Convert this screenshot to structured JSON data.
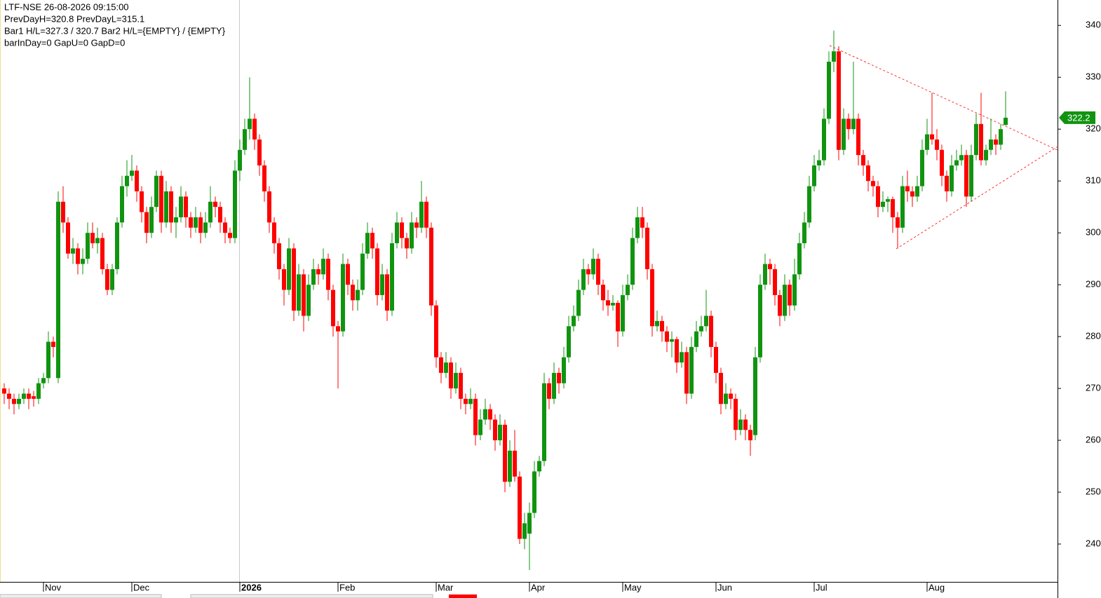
{
  "chart_data": {
    "type": "candlestick",
    "header_lines": [
      "LTF-NSE  26-08-2026 09:15:00",
      "PrevDayH=320.8  PrevDayL=315.1",
      "Bar1 H/L=327.3 / 320.7   Bar2 H/L={EMPTY} / {EMPTY}",
      "barInDay=0   GapU=0   GapD=0"
    ],
    "up_color": "#109410",
    "down_color": "#ff0000",
    "ylim": [
      232.7,
      344.9
    ],
    "yticks": [
      240,
      250,
      260,
      270,
      280,
      290,
      300,
      310,
      320,
      330,
      340
    ],
    "xticks": [
      {
        "value": 8,
        "label": "Nov"
      },
      {
        "value": 26,
        "label": "Dec"
      },
      {
        "value": 48,
        "label": "2026"
      },
      {
        "value": 68,
        "label": "Feb"
      },
      {
        "value": 88,
        "label": "Mar"
      },
      {
        "value": 107,
        "label": "Apr"
      },
      {
        "value": 126,
        "label": "May"
      },
      {
        "value": 145,
        "label": "Jun"
      },
      {
        "value": 165,
        "label": "Jul"
      },
      {
        "value": 188,
        "label": "Aug"
      }
    ],
    "ohlc": [
      [
        270,
        271,
        267,
        269
      ],
      [
        269,
        270,
        266,
        268
      ],
      [
        268,
        269,
        265,
        267
      ],
      [
        267,
        269,
        266,
        268
      ],
      [
        268,
        270,
        267,
        269
      ],
      [
        269,
        270,
        266,
        268
      ],
      [
        268.5,
        269.5,
        266.5,
        268
      ],
      [
        268,
        272,
        267,
        271
      ],
      [
        271,
        273,
        270,
        272
      ],
      [
        272,
        281,
        271,
        279
      ],
      [
        279,
        280,
        276,
        278
      ],
      [
        272,
        308,
        271,
        306
      ],
      [
        306,
        309,
        300,
        302
      ],
      [
        302,
        303,
        295,
        296
      ],
      [
        296,
        299,
        294,
        297
      ],
      [
        297,
        298,
        292,
        294
      ],
      [
        294,
        297,
        292,
        295
      ],
      [
        295,
        302,
        294,
        300
      ],
      [
        300,
        302,
        297,
        298
      ],
      [
        298,
        301,
        296,
        299
      ],
      [
        299,
        300,
        292,
        293
      ],
      [
        293,
        294,
        288,
        289
      ],
      [
        289,
        294,
        288,
        293
      ],
      [
        293,
        303,
        292,
        302
      ],
      [
        302,
        311,
        301,
        309
      ],
      [
        309,
        314,
        307,
        311
      ],
      [
        311,
        315,
        310,
        312
      ],
      [
        312,
        313,
        306,
        308
      ],
      [
        308,
        309,
        302,
        304
      ],
      [
        304,
        305,
        298,
        300
      ],
      [
        300,
        307,
        299,
        305
      ],
      [
        305,
        312,
        304,
        311
      ],
      [
        311,
        312,
        300,
        302
      ],
      [
        302,
        310,
        301,
        308
      ],
      [
        308,
        309,
        300,
        302
      ],
      [
        302,
        305,
        299,
        303
      ],
      [
        303,
        309,
        302,
        307
      ],
      [
        307,
        308,
        301,
        303
      ],
      [
        303,
        304,
        299,
        301
      ],
      [
        301,
        305,
        300,
        303
      ],
      [
        303,
        304,
        298,
        300
      ],
      [
        300,
        304,
        299,
        302
      ],
      [
        302,
        309,
        301,
        306
      ],
      [
        306,
        307,
        303,
        305
      ],
      [
        305,
        306,
        300,
        302
      ],
      [
        302,
        303,
        298,
        300
      ],
      [
        300,
        301,
        298,
        299
      ],
      [
        299,
        314,
        298,
        312
      ],
      [
        312,
        318,
        310,
        316
      ],
      [
        316,
        322,
        315,
        320
      ],
      [
        320,
        330,
        318,
        322
      ],
      [
        322,
        323,
        316,
        318
      ],
      [
        318,
        319,
        311,
        313
      ],
      [
        313,
        314,
        306,
        308
      ],
      [
        308,
        309,
        300,
        302
      ],
      [
        302,
        303,
        296,
        298
      ],
      [
        298,
        299,
        291,
        293
      ],
      [
        293,
        294,
        286,
        289
      ],
      [
        289,
        299,
        288,
        297
      ],
      [
        297,
        298,
        283,
        285
      ],
      [
        285,
        294,
        284,
        292
      ],
      [
        292,
        293,
        281,
        284
      ],
      [
        284,
        292,
        283,
        290
      ],
      [
        290,
        295,
        289,
        293
      ],
      [
        293,
        294,
        290,
        292
      ],
      [
        292,
        297,
        291,
        295
      ],
      [
        295,
        296,
        287,
        289
      ],
      [
        289,
        290,
        280,
        282
      ],
      [
        282,
        283,
        270,
        281
      ],
      [
        281,
        296,
        280,
        294
      ],
      [
        294,
        295,
        288,
        290
      ],
      [
        290,
        291,
        285,
        287
      ],
      [
        287,
        291,
        285,
        289
      ],
      [
        289,
        298,
        288,
        296
      ],
      [
        296,
        302,
        295,
        300
      ],
      [
        300,
        301,
        295,
        297
      ],
      [
        297,
        298,
        286,
        288
      ],
      [
        288,
        294,
        287,
        292
      ],
      [
        292,
        293,
        283,
        285
      ],
      [
        285,
        300,
        284,
        298
      ],
      [
        298,
        304,
        297,
        302
      ],
      [
        302,
        303,
        297,
        299
      ],
      [
        299,
        300,
        295,
        297
      ],
      [
        297,
        304,
        296,
        302
      ],
      [
        302,
        303,
        299,
        301
      ],
      [
        301,
        310,
        300,
        306
      ],
      [
        306,
        307,
        299,
        301
      ],
      [
        301,
        302,
        284,
        286
      ],
      [
        286,
        287,
        274,
        276
      ],
      [
        276,
        277,
        271,
        273
      ],
      [
        273,
        277,
        272,
        275
      ],
      [
        275,
        276,
        268,
        270
      ],
      [
        270,
        275,
        269,
        273
      ],
      [
        273,
        274,
        266,
        268
      ],
      [
        268,
        269,
        265,
        267
      ],
      [
        267,
        270,
        266,
        268
      ],
      [
        268,
        269,
        259,
        261
      ],
      [
        261,
        266,
        260,
        264
      ],
      [
        264,
        268,
        263,
        266
      ],
      [
        266,
        267,
        262,
        264
      ],
      [
        264,
        265,
        258,
        260
      ],
      [
        260,
        265,
        259,
        263
      ],
      [
        263,
        264,
        250,
        252
      ],
      [
        252,
        260,
        251,
        258
      ],
      [
        258,
        262,
        252,
        253
      ],
      [
        253,
        254,
        240,
        241
      ],
      [
        241,
        246,
        239,
        244
      ],
      [
        242,
        248,
        235,
        246
      ],
      [
        246,
        256,
        245,
        254
      ],
      [
        254,
        257,
        253,
        256
      ],
      [
        256,
        273,
        255,
        271
      ],
      [
        271,
        272,
        266,
        268
      ],
      [
        268,
        275,
        267,
        273
      ],
      [
        273,
        274,
        269,
        271
      ],
      [
        271,
        278,
        270,
        276
      ],
      [
        276,
        284,
        275,
        282
      ],
      [
        282,
        286,
        281,
        284
      ],
      [
        284,
        291,
        283,
        289
      ],
      [
        289,
        295,
        288,
        293
      ],
      [
        293,
        294,
        290,
        292
      ],
      [
        292,
        297,
        291,
        295
      ],
      [
        295,
        296,
        288,
        290
      ],
      [
        290,
        291,
        285,
        287
      ],
      [
        287,
        289,
        284,
        286
      ],
      [
        286,
        288,
        285,
        286.5
      ],
      [
        286.5,
        287,
        278,
        281
      ],
      [
        281,
        290,
        280,
        288
      ],
      [
        288,
        292,
        287,
        290
      ],
      [
        290,
        301,
        289,
        299
      ],
      [
        299,
        305,
        298,
        303
      ],
      [
        303,
        305,
        299,
        301
      ],
      [
        301,
        302,
        291,
        293
      ],
      [
        293,
        294,
        280,
        282
      ],
      [
        282,
        285,
        281,
        283
      ],
      [
        283,
        284,
        279,
        281
      ],
      [
        281,
        282,
        277,
        279
      ],
      [
        279,
        281,
        276,
        279.5
      ],
      [
        279.5,
        280,
        273,
        275
      ],
      [
        275,
        279,
        274,
        277
      ],
      [
        277,
        278,
        267,
        269
      ],
      [
        269,
        280,
        268,
        278
      ],
      [
        278,
        283,
        277,
        281
      ],
      [
        281,
        284,
        280,
        282
      ],
      [
        282,
        289,
        281,
        284
      ],
      [
        284,
        285,
        276,
        278
      ],
      [
        278,
        279,
        271,
        273
      ],
      [
        273,
        274,
        265,
        267
      ],
      [
        267,
        271,
        266,
        269
      ],
      [
        269,
        270,
        266,
        268
      ],
      [
        268,
        269,
        260,
        262
      ],
      [
        262,
        266,
        261,
        264
      ],
      [
        264,
        265,
        260,
        262
      ],
      [
        262,
        263,
        257,
        260
      ],
      [
        261,
        278,
        260,
        276
      ],
      [
        276,
        292,
        275,
        290
      ],
      [
        290,
        296,
        289,
        294
      ],
      [
        294,
        295,
        290,
        293
      ],
      [
        293,
        294,
        286,
        288
      ],
      [
        288,
        289,
        282,
        284
      ],
      [
        284,
        292,
        283,
        290
      ],
      [
        290,
        291,
        284,
        286
      ],
      [
        286,
        295,
        285,
        292
      ],
      [
        292,
        300,
        291,
        298
      ],
      [
        298,
        304,
        297,
        302
      ],
      [
        302,
        311,
        301,
        309
      ],
      [
        309,
        315,
        308,
        313
      ],
      [
        313,
        316,
        312,
        314
      ],
      [
        314,
        324,
        313,
        322
      ],
      [
        322,
        335,
        321,
        333
      ],
      [
        333,
        339,
        331,
        335
      ],
      [
        335,
        336,
        314,
        316
      ],
      [
        316,
        324,
        315,
        322
      ],
      [
        322,
        323,
        318,
        320
      ],
      [
        320,
        333,
        319,
        322
      ],
      [
        322,
        323,
        313,
        315
      ],
      [
        315,
        316,
        311,
        313
      ],
      [
        313,
        314,
        308,
        310
      ],
      [
        310,
        311,
        307,
        309
      ],
      [
        309,
        310,
        303,
        305
      ],
      [
        305,
        308,
        304,
        306
      ],
      [
        306,
        307,
        304,
        306.5
      ],
      [
        306.5,
        307,
        300,
        303
      ],
      [
        303,
        304,
        297,
        301
      ],
      [
        301,
        311,
        300,
        309
      ],
      [
        309,
        312,
        306,
        308
      ],
      [
        308,
        309,
        305,
        307
      ],
      [
        307,
        311,
        306,
        309
      ],
      [
        309,
        318,
        308,
        316
      ],
      [
        316,
        322,
        315,
        319
      ],
      [
        319,
        327,
        317,
        318
      ],
      [
        318,
        320,
        314,
        316
      ],
      [
        316,
        317,
        309,
        311
      ],
      [
        311,
        312,
        306,
        308
      ],
      [
        308,
        315,
        307,
        313
      ],
      [
        313,
        316,
        312,
        314
      ],
      [
        314,
        317,
        313,
        315
      ],
      [
        315,
        316,
        305,
        307
      ],
      [
        307,
        317,
        306,
        315
      ],
      [
        315,
        323,
        314,
        321
      ],
      [
        321,
        327,
        313,
        314
      ],
      [
        314,
        317,
        313,
        316
      ],
      [
        316,
        322,
        315,
        318
      ],
      [
        318,
        319,
        315,
        317
      ],
      [
        317,
        321,
        316,
        320
      ],
      [
        320.8,
        327.3,
        320.7,
        322.2
      ]
    ]
  }
}
